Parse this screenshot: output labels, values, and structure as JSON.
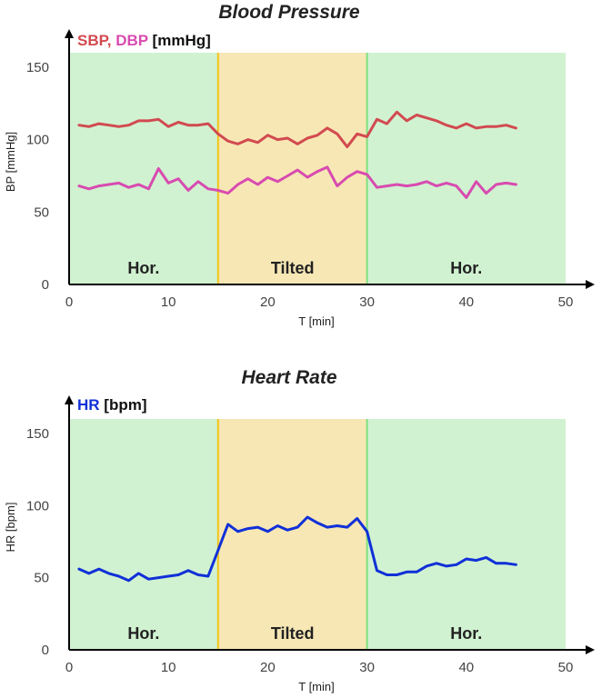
{
  "chart_data": [
    {
      "type": "line",
      "title": "Blood Pressure",
      "xlabel": "T [min]",
      "ylabel": "BP [mmHg]",
      "legend": {
        "unit": "[mmHg]"
      },
      "xlim": [
        0,
        50
      ],
      "ylim": [
        0,
        160
      ],
      "xticks": [
        "0",
        "10",
        "20",
        "30",
        "40",
        "50"
      ],
      "yticks": [
        "0",
        "50",
        "100",
        "150"
      ],
      "regions": [
        {
          "label": "Hor.",
          "start": 0,
          "end": 15,
          "color": "#d1f2d1"
        },
        {
          "label": "Tilted",
          "start": 15,
          "end": 30,
          "color": "#f7e7b5"
        },
        {
          "label": "Hor.",
          "start": 30,
          "end": 50,
          "color": "#d1f2d1"
        }
      ],
      "x": [
        1,
        2,
        3,
        4,
        5,
        6,
        7,
        8,
        9,
        10,
        11,
        12,
        13,
        14,
        15,
        16,
        17,
        18,
        19,
        20,
        21,
        22,
        23,
        24,
        25,
        26,
        27,
        28,
        29,
        30,
        31,
        32,
        33,
        34,
        35,
        36,
        37,
        38,
        39,
        40,
        41,
        42,
        43,
        44,
        45
      ],
      "series": [
        {
          "name": "SBP",
          "color": "#d24a50",
          "values": [
            110,
            109,
            111,
            110,
            109,
            110,
            113,
            113,
            114,
            109,
            112,
            110,
            110,
            111,
            104,
            99,
            97,
            100,
            98,
            103,
            100,
            101,
            97,
            101,
            103,
            108,
            104,
            95,
            104,
            102,
            114,
            111,
            119,
            113,
            117,
            115,
            113,
            110,
            108,
            111,
            108,
            109,
            109,
            110,
            108
          ]
        },
        {
          "name": "DBP",
          "color": "#d84bb0",
          "values": [
            68,
            66,
            68,
            69,
            70,
            67,
            69,
            66,
            80,
            70,
            73,
            65,
            71,
            66,
            65,
            63,
            69,
            73,
            69,
            74,
            71,
            75,
            79,
            74,
            78,
            81,
            68,
            74,
            78,
            76,
            67,
            68,
            69,
            68,
            69,
            71,
            68,
            70,
            68,
            60,
            71,
            63,
            69,
            70,
            69
          ]
        }
      ]
    },
    {
      "type": "line",
      "title": "Heart Rate",
      "xlabel": "T [min]",
      "ylabel": "HR [bpm]",
      "legend": {
        "unit": "[bpm]"
      },
      "xlim": [
        0,
        50
      ],
      "ylim": [
        0,
        160
      ],
      "xticks": [
        "0",
        "10",
        "20",
        "30",
        "40",
        "50"
      ],
      "yticks": [
        "0",
        "50",
        "100",
        "150"
      ],
      "regions": [
        {
          "label": "Hor.",
          "start": 0,
          "end": 15,
          "color": "#d1f2d1"
        },
        {
          "label": "Tilted",
          "start": 15,
          "end": 30,
          "color": "#f7e7b5"
        },
        {
          "label": "Hor.",
          "start": 30,
          "end": 50,
          "color": "#d1f2d1"
        }
      ],
      "x": [
        1,
        2,
        3,
        4,
        5,
        6,
        7,
        8,
        9,
        10,
        11,
        12,
        13,
        14,
        15,
        16,
        17,
        18,
        19,
        20,
        21,
        22,
        23,
        24,
        25,
        26,
        27,
        28,
        29,
        30,
        31,
        32,
        33,
        34,
        35,
        36,
        37,
        38,
        39,
        40,
        41,
        42,
        43,
        44,
        45
      ],
      "series": [
        {
          "name": "HR",
          "color": "#1030d8",
          "values": [
            56,
            53,
            56,
            53,
            51,
            48,
            53,
            49,
            50,
            51,
            52,
            55,
            52,
            51,
            69,
            87,
            82,
            84,
            85,
            82,
            86,
            83,
            85,
            92,
            88,
            85,
            86,
            85,
            91,
            82,
            55,
            52,
            52,
            54,
            54,
            58,
            60,
            58,
            59,
            63,
            62,
            64,
            60,
            60,
            59
          ]
        }
      ]
    }
  ]
}
